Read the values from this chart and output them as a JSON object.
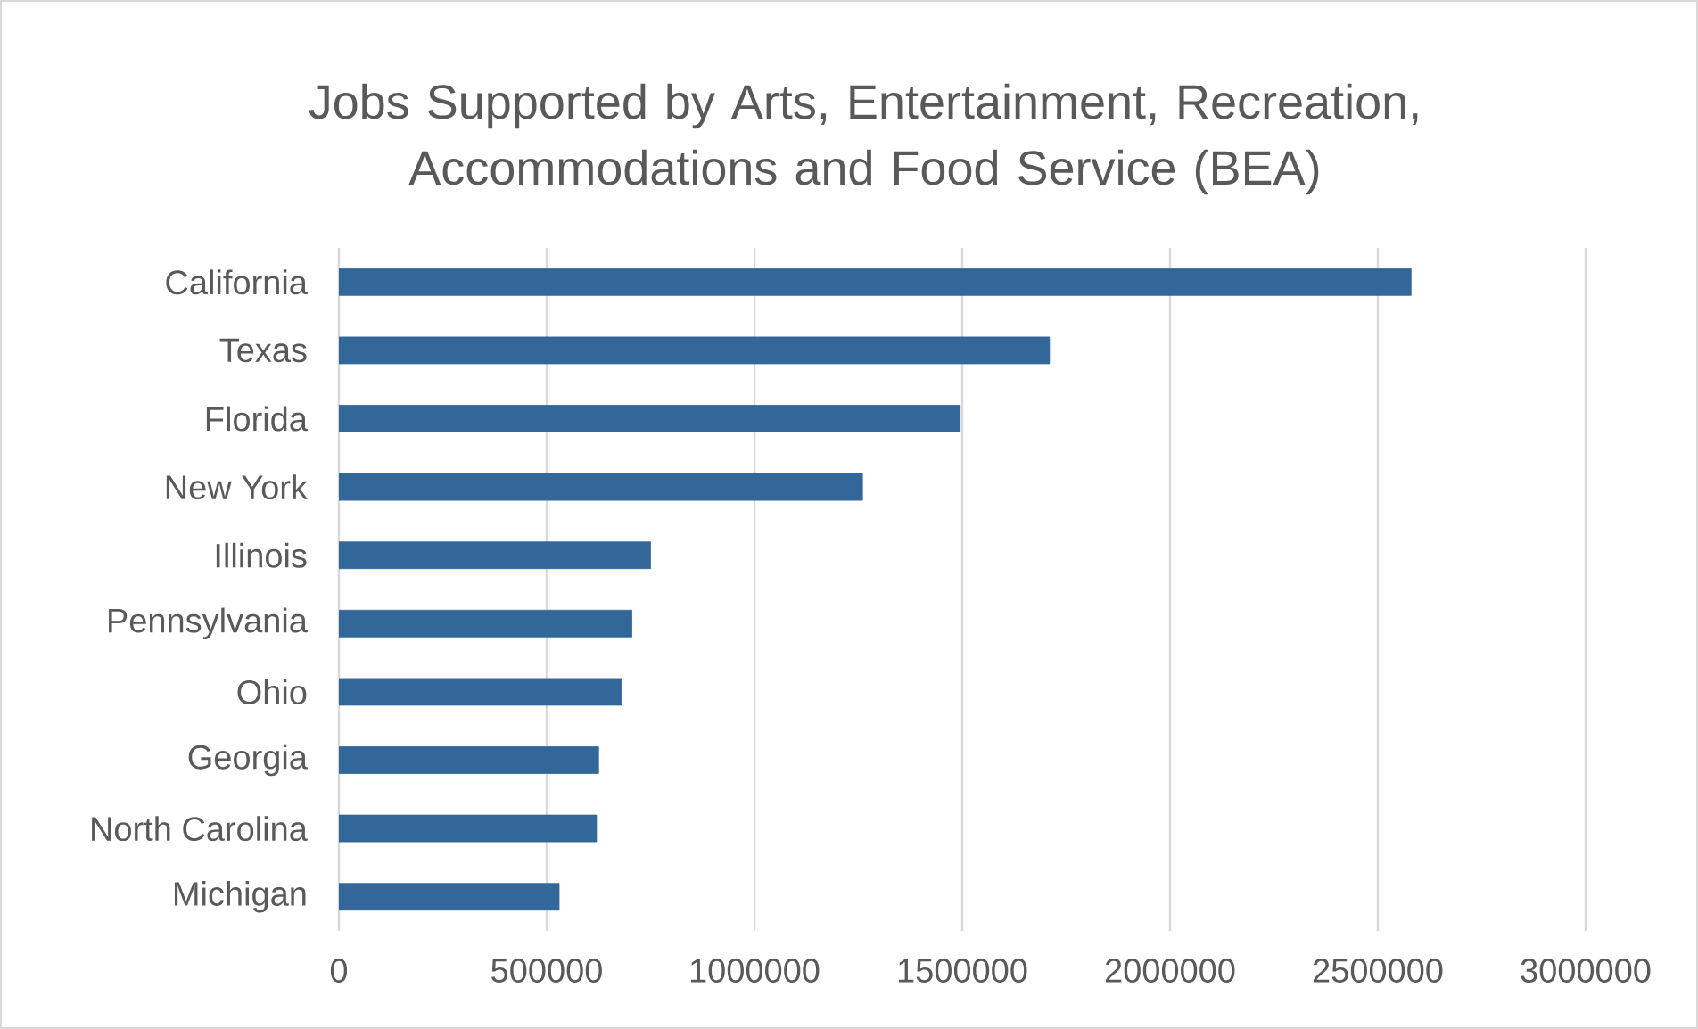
{
  "chart_data": {
    "type": "bar",
    "orientation": "horizontal",
    "title": "Jobs Supported by Arts, Entertainment, Recreation, Accommodations and Food Service (BEA)",
    "categories": [
      "California",
      "Texas",
      "Florida",
      "New York",
      "Illinois",
      "Pennsylvania",
      "Ohio",
      "Georgia",
      "North Carolina",
      "Michigan"
    ],
    "values": [
      2580000,
      1710000,
      1495000,
      1260000,
      750000,
      705000,
      680000,
      625000,
      620000,
      530000
    ],
    "color": "#336699",
    "xlim": [
      0,
      3000000
    ],
    "xticks": [
      0,
      500000,
      1000000,
      1500000,
      2000000,
      2500000,
      3000000
    ],
    "grid": "x"
  }
}
